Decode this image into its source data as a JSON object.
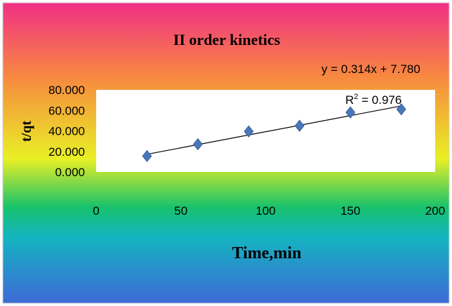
{
  "chart_data": {
    "type": "scatter",
    "title": "II order kinetics",
    "xlabel": "Time,min",
    "ylabel": "t/qt",
    "xlim": [
      0,
      200
    ],
    "ylim": [
      0,
      80
    ],
    "x_ticks": [
      "0",
      "50",
      "100",
      "150",
      "200"
    ],
    "y_ticks": [
      "0.000",
      "20.000",
      "40.000",
      "60.000",
      "80.000"
    ],
    "grid": false,
    "legend": "none",
    "series": [
      {
        "x": [
          30,
          60,
          90,
          120,
          150,
          180
        ],
        "y": [
          15.5,
          27.0,
          39.5,
          45.0,
          58.0,
          61.0
        ],
        "marker": "diamond",
        "color": "#4a77b9"
      }
    ],
    "trendline": {
      "slope": 0.314,
      "intercept": 7.78,
      "x_range": [
        30,
        180
      ],
      "color": "#000000"
    },
    "annotations": {
      "equation": "y = 0.314x + 7.780",
      "r_squared_prefix": "R",
      "r_squared_sup": "2",
      "r_squared_value": " = 0.976"
    },
    "colors": {
      "gradient_top": "#f12f86",
      "gradient_orange": "#f78a3f",
      "gradient_yellow": "#e9f025",
      "gradient_green": "#18c26b",
      "gradient_teal": "#14b4c0",
      "gradient_blue": "#3e6ad8",
      "plot_area": "#ffffff"
    }
  }
}
